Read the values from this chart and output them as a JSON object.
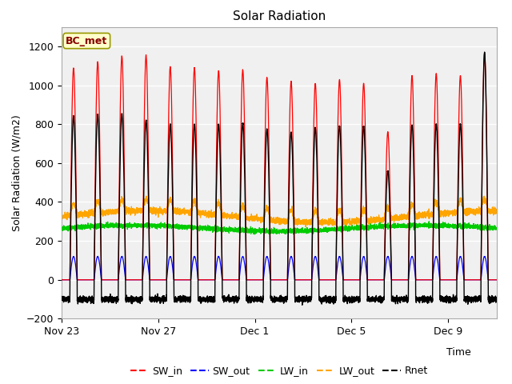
{
  "title": "Solar Radiation",
  "ylabel": "Solar Radiation (W/m2)",
  "xlabel_right": "Time",
  "ylim": [
    -200,
    1300
  ],
  "yticks": [
    -200,
    0,
    200,
    400,
    600,
    800,
    1000,
    1200
  ],
  "xtick_labels": [
    "Nov 23",
    "Nov 27",
    "Dec 1",
    "Dec 5",
    "Dec 9"
  ],
  "xtick_positions": [
    0,
    4,
    8,
    12,
    16
  ],
  "label_box_text": "BC_met",
  "legend_entries": [
    "SW_in",
    "SW_out",
    "LW_in",
    "LW_out",
    "Rnet"
  ],
  "colors": {
    "SW_in": "#FF0000",
    "SW_out": "#0000FF",
    "LW_in": "#00CC00",
    "LW_out": "#FFA500",
    "Rnet": "#000000"
  },
  "n_days": 18,
  "ppd": 288,
  "sw_in_peaks": [
    1090,
    1120,
    1150,
    1155,
    1095,
    1090,
    1075,
    1080,
    1040,
    1020,
    1010,
    1030,
    1010,
    760,
    1050,
    1060,
    1050,
    1160
  ],
  "sw_out_peaks": [
    10,
    10,
    10,
    10,
    10,
    10,
    10,
    10,
    10,
    10,
    10,
    10,
    10,
    8,
    10,
    10,
    10,
    10
  ],
  "rnet_peaks": [
    840,
    850,
    855,
    820,
    800,
    800,
    800,
    805,
    775,
    760,
    780,
    790,
    790,
    560,
    795,
    800,
    800,
    1170
  ],
  "lw_in_base": 265,
  "lw_out_base": 325,
  "rnet_night": -100,
  "sw_out_day_peak": 120,
  "figsize": [
    6.4,
    4.8
  ],
  "dpi": 100,
  "fig_facecolor": "#FFFFFF",
  "ax_facecolor": "#F0F0F0",
  "grid_color": "#FFFFFF",
  "bc_met_facecolor": "#FFFFCC",
  "bc_met_edgecolor": "#999900",
  "bc_met_textcolor": "#880000"
}
